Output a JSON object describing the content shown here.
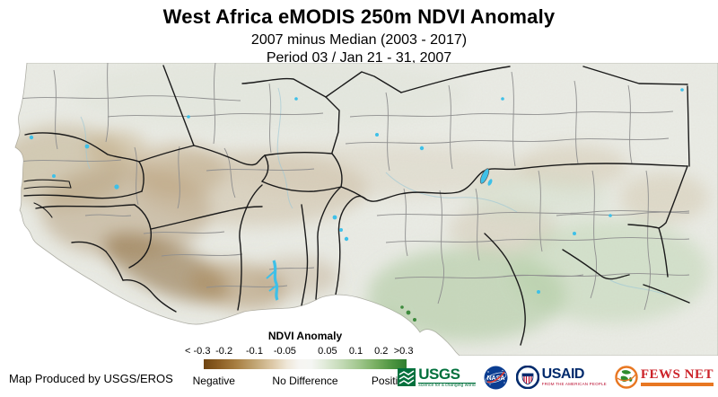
{
  "title": "West Africa eMODIS 250m NDVI Anomaly",
  "subtitle_line1": "2007 minus Median (2003 - 2017)",
  "subtitle_line2": "Period 03 / Jan 21 - 31, 2007",
  "footer": {
    "credit": "Map Produced by USGS/EROS"
  },
  "legend": {
    "title": "NDVI Anomaly",
    "ticks": [
      "< -0.3",
      "-0.2",
      "-0.1",
      "-0.05",
      "0.05",
      "0.1",
      "0.2",
      ">0.3"
    ],
    "categories": [
      "Negative",
      "No Difference",
      "Positive"
    ],
    "colors": {
      "negative_end": "#6f4511",
      "no_difference": "#f6f5f2",
      "positive_end": "#2f7e2f"
    }
  },
  "map": {
    "region": "West Africa",
    "colors": {
      "ocean": "#ffffff",
      "land_base": "#eaece6",
      "negative_anomaly_brown": "#8f6f42",
      "positive_anomaly_green": "#9cc28c",
      "water_bodies_cyan": "#3ec0e8",
      "country_border": "#1a1a1a",
      "admin_border": "#8f8f8f"
    }
  },
  "logos": {
    "usgs": {
      "name": "USGS",
      "tagline": "science for a changing world"
    },
    "nasa": {
      "name": "NASA"
    },
    "usaid": {
      "name": "USAID",
      "tagline": "FROM THE AMERICAN PEOPLE"
    },
    "fewsnet": {
      "name": "FEWS NET"
    }
  }
}
